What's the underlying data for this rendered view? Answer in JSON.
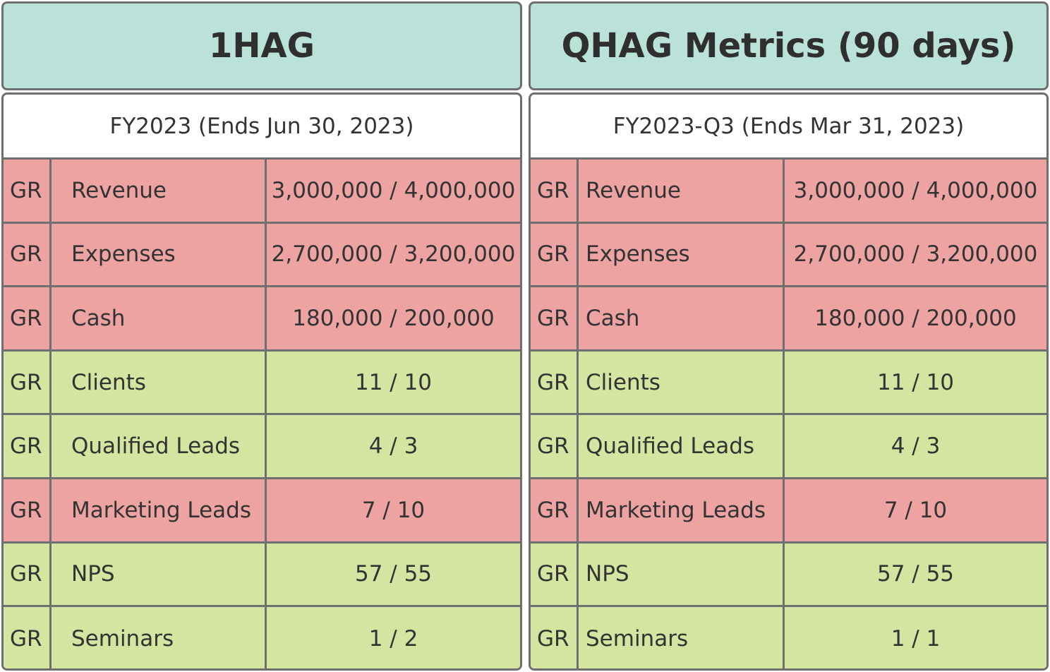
{
  "panels": [
    {
      "title": "1HAG",
      "period": "FY2023 (Ends Jun 30, 2023)",
      "rows": [
        {
          "code": "GR",
          "name": "Revenue",
          "value": "3,000,000 / 4,000,000",
          "status": "red"
        },
        {
          "code": "GR",
          "name": "Expenses",
          "value": "2,700,000 / 3,200,000",
          "status": "red"
        },
        {
          "code": "GR",
          "name": "Cash",
          "value": "180,000 / 200,000",
          "status": "red"
        },
        {
          "code": "GR",
          "name": "Clients",
          "value": "11 / 10",
          "status": "green"
        },
        {
          "code": "GR",
          "name": "Qualified Leads",
          "value": "4 / 3",
          "status": "green"
        },
        {
          "code": "GR",
          "name": "Marketing Leads",
          "value": "7 / 10",
          "status": "red"
        },
        {
          "code": "GR",
          "name": "NPS",
          "value": "57 / 55",
          "status": "green"
        },
        {
          "code": "GR",
          "name": "Seminars",
          "value": "1 / 2",
          "status": "green"
        }
      ]
    },
    {
      "title": "QHAG Metrics (90 days)",
      "period": "FY2023-Q3 (Ends Mar 31, 2023)",
      "rows": [
        {
          "code": "GR",
          "name": "Revenue",
          "value": "3,000,000 / 4,000,000",
          "status": "red"
        },
        {
          "code": "GR",
          "name": "Expenses",
          "value": "2,700,000 / 3,200,000",
          "status": "red"
        },
        {
          "code": "GR",
          "name": "Cash",
          "value": "180,000 / 200,000",
          "status": "red"
        },
        {
          "code": "GR",
          "name": "Clients",
          "value": "11 / 10",
          "status": "green"
        },
        {
          "code": "GR",
          "name": "Qualified Leads",
          "value": "4 / 3",
          "status": "green"
        },
        {
          "code": "GR",
          "name": "Marketing Leads",
          "value": "7 / 10",
          "status": "red"
        },
        {
          "code": "GR",
          "name": "NPS",
          "value": "57 / 55",
          "status": "green"
        },
        {
          "code": "GR",
          "name": "Seminars",
          "value": "1 / 1",
          "status": "green"
        }
      ]
    }
  ],
  "colors": {
    "header_bg": "#bae2d9",
    "red": "#eca3a2",
    "green": "#d3e5a0",
    "border": "#6f6f6f"
  }
}
